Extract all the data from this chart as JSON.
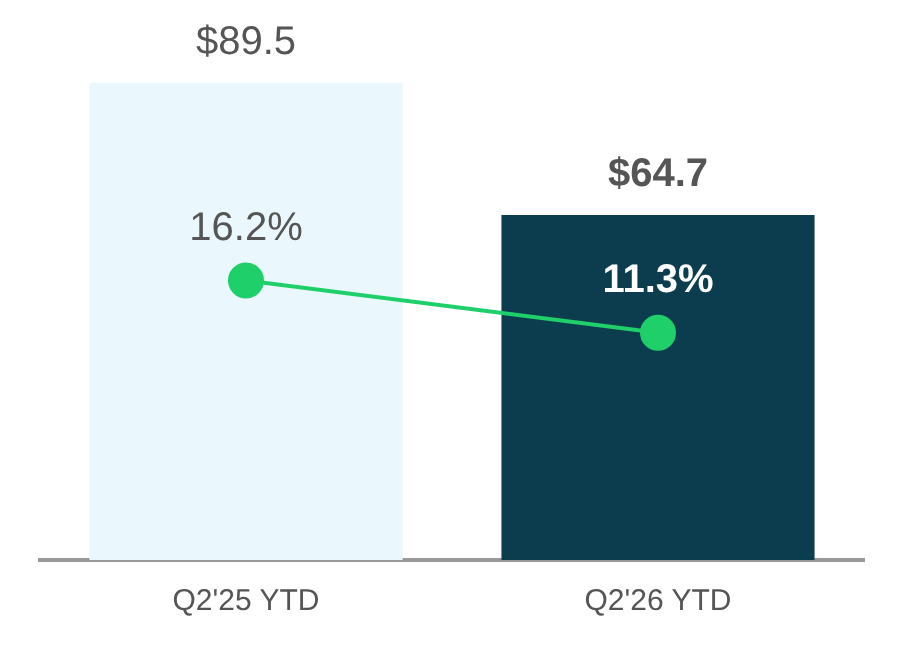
{
  "chart_data": {
    "type": "bar",
    "categories": [
      "Q2'25 YTD",
      "Q2'26 YTD"
    ],
    "series": [
      {
        "colors": [
          "#eaf8fd",
          "#0b3d4f"
        ],
        "values": [
          89.5,
          64.7
        ],
        "value_labels": [
          "$89.5",
          "$64.7"
        ]
      },
      {
        "type": "line",
        "axis": "y2",
        "color": "#1fcf6a",
        "values": [
          16.2,
          11.3
        ],
        "value_labels": [
          "16.2%",
          "11.3%"
        ]
      }
    ],
    "grid": false,
    "legend": false,
    "tick_labels": "x",
    "marker": "circle",
    "line_style": "solid"
  }
}
